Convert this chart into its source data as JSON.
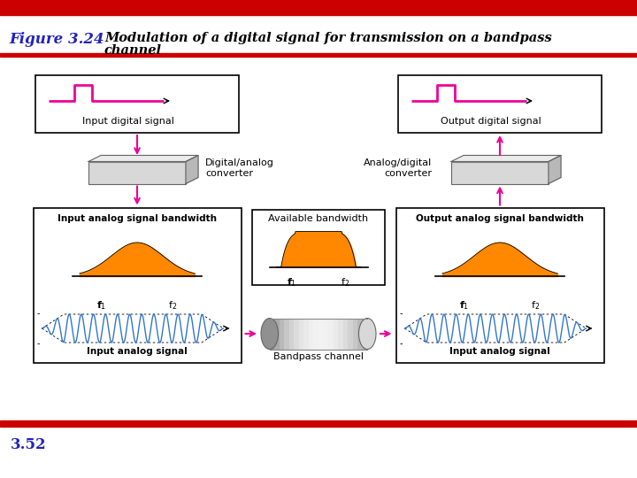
{
  "title_label": "Figure 3.24",
  "title_desc_line1": "Modulation of a digital signal for transmission on a bandpass",
  "title_desc_line2": "channel",
  "title_label_color": "#2222bb",
  "red_bar_color": "#cc0000",
  "magenta_color": "#ee0099",
  "orange_color": "#ff8800",
  "blue_signal_color": "#3377cc",
  "footer_num": "3.52",
  "left_digital_label": "Input digital signal",
  "right_digital_label": "Output digital signal",
  "left_converter_label": "Digital/analog\nconverter",
  "right_converter_label": "Analog/digital\nconverter",
  "left_bw_label": "Input analog signal bandwidth",
  "center_bw_label": "Available bandwidth",
  "right_bw_label": "Output analog signal bandwidth",
  "left_signal_label": "Input analog signal",
  "center_channel_label": "Bandpass channel",
  "right_signal_label": "Input analog signal"
}
